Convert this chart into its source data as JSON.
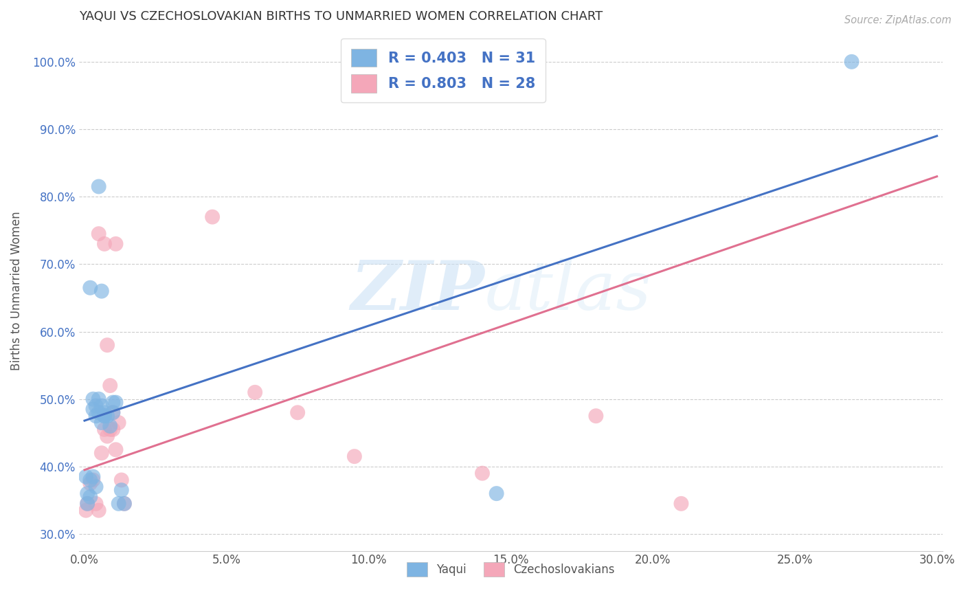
{
  "title": "YAQUI VS CZECHOSLOVAKIAN BIRTHS TO UNMARRIED WOMEN CORRELATION CHART",
  "source": "Source: ZipAtlas.com",
  "xlabel": "",
  "ylabel": "Births to Unmarried Women",
  "xlim": [
    -0.002,
    0.302
  ],
  "ylim": [
    0.275,
    1.045
  ],
  "xticks": [
    0.0,
    0.05,
    0.1,
    0.15,
    0.2,
    0.25,
    0.3
  ],
  "yticks": [
    0.3,
    0.4,
    0.5,
    0.6,
    0.7,
    0.8,
    0.9,
    1.0
  ],
  "xtick_labels": [
    "0.0%",
    "5.0%",
    "10.0%",
    "15.0%",
    "20.0%",
    "25.0%",
    "30.0%"
  ],
  "ytick_labels": [
    "30.0%",
    "40.0%",
    "50.0%",
    "60.0%",
    "70.0%",
    "80.0%",
    "90.0%",
    "100.0%"
  ],
  "yaqui_color": "#7EB4E2",
  "czech_color": "#F4A7B9",
  "yaqui_line_color": "#4472C4",
  "czech_line_color": "#E07090",
  "yaqui_label": "Yaqui",
  "czech_label": "Czechoslovakians",
  "yaqui_R": 0.403,
  "yaqui_N": 31,
  "czech_R": 0.803,
  "czech_N": 28,
  "legend_text_color": "#4472C4",
  "yaqui_scatter_x": [
    0.0005,
    0.001,
    0.001,
    0.002,
    0.002,
    0.003,
    0.003,
    0.004,
    0.004,
    0.005,
    0.005,
    0.006,
    0.006,
    0.007,
    0.007,
    0.007,
    0.008,
    0.009,
    0.01,
    0.01,
    0.011,
    0.012,
    0.013,
    0.014,
    0.005,
    0.006,
    0.002,
    0.003,
    0.004,
    0.145,
    0.27
  ],
  "yaqui_scatter_y": [
    0.385,
    0.36,
    0.345,
    0.38,
    0.355,
    0.5,
    0.485,
    0.475,
    0.49,
    0.48,
    0.5,
    0.49,
    0.465,
    0.475,
    0.48,
    0.475,
    0.475,
    0.46,
    0.495,
    0.48,
    0.495,
    0.345,
    0.365,
    0.345,
    0.815,
    0.66,
    0.665,
    0.385,
    0.37,
    0.36,
    1.0
  ],
  "czech_scatter_x": [
    0.0005,
    0.001,
    0.002,
    0.003,
    0.004,
    0.005,
    0.006,
    0.007,
    0.008,
    0.009,
    0.01,
    0.011,
    0.012,
    0.013,
    0.014,
    0.005,
    0.007,
    0.008,
    0.009,
    0.01,
    0.011,
    0.045,
    0.06,
    0.075,
    0.095,
    0.14,
    0.18,
    0.21
  ],
  "czech_scatter_y": [
    0.335,
    0.345,
    0.375,
    0.38,
    0.345,
    0.335,
    0.42,
    0.455,
    0.445,
    0.455,
    0.455,
    0.425,
    0.465,
    0.38,
    0.345,
    0.745,
    0.73,
    0.58,
    0.52,
    0.48,
    0.73,
    0.77,
    0.51,
    0.48,
    0.415,
    0.39,
    0.475,
    0.345
  ],
  "yaqui_trend_x0": 0.0,
  "yaqui_trend_y0": 0.468,
  "yaqui_trend_x1": 0.3,
  "yaqui_trend_y1": 0.89,
  "czech_trend_x0": 0.0,
  "czech_trend_y0": 0.395,
  "czech_trend_x1": 0.3,
  "czech_trend_y1": 0.83,
  "watermark_zip": "ZIP",
  "watermark_atlas": "atlas",
  "background_color": "#FFFFFF",
  "grid_color": "#CCCCCC"
}
